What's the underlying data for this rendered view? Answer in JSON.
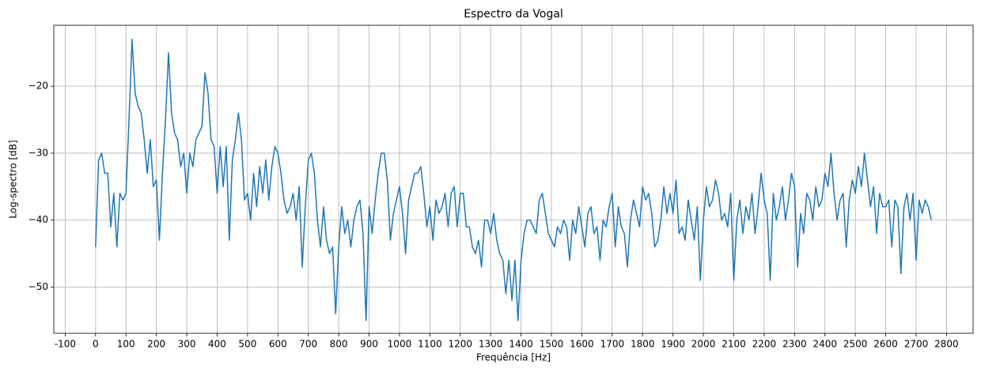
{
  "chart_data": {
    "type": "line",
    "title": "Espectro da Vogal",
    "x_label": "Frequência [Hz]",
    "y_label": "Log-spectro [dB]",
    "color": "#1f77b4",
    "grid": true,
    "xlim": [
      -137.5,
      2887.5
    ],
    "ylim": [
      -56.9,
      -10.9
    ],
    "xticks": [
      -100,
      0,
      100,
      200,
      300,
      400,
      500,
      600,
      700,
      800,
      900,
      1000,
      1100,
      1200,
      1300,
      1400,
      1500,
      1600,
      1700,
      1800,
      1900,
      2000,
      2100,
      2200,
      2300,
      2400,
      2500,
      2600,
      2700,
      2800
    ],
    "yticks": [
      {
        "value": -50,
        "label": "−50"
      },
      {
        "value": -40,
        "label": "−40"
      },
      {
        "value": -30,
        "label": "−30"
      },
      {
        "value": -20,
        "label": "−20"
      }
    ],
    "x": [
      0,
      10,
      20,
      30,
      40,
      50,
      60,
      70,
      80,
      90,
      100,
      110,
      120,
      130,
      140,
      150,
      160,
      170,
      180,
      190,
      200,
      210,
      220,
      230,
      240,
      250,
      260,
      270,
      280,
      290,
      300,
      310,
      320,
      330,
      340,
      350,
      360,
      370,
      380,
      390,
      400,
      410,
      420,
      430,
      440,
      450,
      460,
      470,
      480,
      490,
      500,
      510,
      520,
      530,
      540,
      550,
      560,
      570,
      580,
      590,
      600,
      610,
      620,
      630,
      640,
      650,
      660,
      670,
      680,
      690,
      700,
      710,
      720,
      730,
      740,
      750,
      760,
      770,
      780,
      790,
      800,
      810,
      820,
      830,
      840,
      850,
      860,
      870,
      880,
      890,
      900,
      910,
      920,
      930,
      940,
      950,
      960,
      970,
      980,
      990,
      1000,
      1010,
      1020,
      1030,
      1040,
      1050,
      1060,
      1070,
      1080,
      1090,
      1100,
      1110,
      1120,
      1130,
      1140,
      1150,
      1160,
      1170,
      1180,
      1190,
      1200,
      1210,
      1220,
      1230,
      1240,
      1250,
      1260,
      1270,
      1280,
      1290,
      1300,
      1310,
      1320,
      1330,
      1340,
      1350,
      1360,
      1370,
      1380,
      1390,
      1400,
      1410,
      1420,
      1430,
      1440,
      1450,
      1460,
      1470,
      1480,
      1490,
      1500,
      1510,
      1520,
      1530,
      1540,
      1550,
      1560,
      1570,
      1580,
      1590,
      1600,
      1610,
      1620,
      1630,
      1640,
      1650,
      1660,
      1670,
      1680,
      1690,
      1700,
      1710,
      1720,
      1730,
      1740,
      1750,
      1760,
      1770,
      1780,
      1790,
      1800,
      1810,
      1820,
      1830,
      1840,
      1850,
      1860,
      1870,
      1880,
      1890,
      1900,
      1910,
      1920,
      1930,
      1940,
      1950,
      1960,
      1970,
      1980,
      1990,
      2000,
      2010,
      2020,
      2030,
      2040,
      2050,
      2060,
      2070,
      2080,
      2090,
      2100,
      2110,
      2120,
      2130,
      2140,
      2150,
      2160,
      2170,
      2180,
      2190,
      2200,
      2210,
      2220,
      2230,
      2240,
      2250,
      2260,
      2270,
      2280,
      2290,
      2300,
      2310,
      2320,
      2330,
      2340,
      2350,
      2360,
      2370,
      2380,
      2390,
      2400,
      2410,
      2420,
      2430,
      2440,
      2450,
      2460,
      2470,
      2480,
      2490,
      2500,
      2510,
      2520,
      2530,
      2540,
      2550,
      2560,
      2570,
      2580,
      2590,
      2600,
      2610,
      2620,
      2630,
      2640,
      2650,
      2660,
      2670,
      2680,
      2690,
      2700,
      2710,
      2720,
      2730,
      2740,
      2750
    ],
    "values": [
      -44,
      -31,
      -30,
      -33,
      -33,
      -41,
      -36,
      -44,
      -36,
      -37,
      -36,
      -25,
      -13,
      -21,
      -23,
      -24,
      -28,
      -33,
      -28,
      -35,
      -34,
      -43,
      -33,
      -25,
      -15,
      -24,
      -27,
      -28,
      -32,
      -30,
      -36,
      -30,
      -32,
      -28,
      -27,
      -26,
      -18,
      -21,
      -28,
      -29,
      -36,
      -29,
      -35,
      -29,
      -43,
      -31,
      -28,
      -24,
      -28,
      -37,
      -36,
      -40,
      -33,
      -38,
      -32,
      -36,
      -31,
      -37,
      -32,
      -29,
      -30,
      -33,
      -37,
      -39,
      -38,
      -36,
      -40,
      -35,
      -47,
      -38,
      -31,
      -30,
      -33,
      -40,
      -44,
      -38,
      -43,
      -45,
      -44,
      -54,
      -44,
      -38,
      -42,
      -40,
      -44,
      -40,
      -38,
      -37,
      -42,
      -55,
      -38,
      -42,
      -37,
      -33,
      -30,
      -30,
      -34,
      -43,
      -39,
      -37,
      -35,
      -39,
      -45,
      -37,
      -35,
      -33,
      -33,
      -32,
      -36,
      -41,
      -38,
      -43,
      -37,
      -39,
      -38,
      -36,
      -41,
      -36,
      -35,
      -41,
      -36,
      -36,
      -41,
      -41,
      -44,
      -45,
      -43,
      -47,
      -40,
      -40,
      -42,
      -39,
      -43,
      -45,
      -46,
      -51,
      -46,
      -52,
      -46,
      -55,
      -46,
      -42,
      -40,
      -40,
      -41,
      -42,
      -37,
      -36,
      -39,
      -42,
      -43,
      -44,
      -41,
      -42,
      -40,
      -41,
      -46,
      -40,
      -42,
      -38,
      -41,
      -44,
      -39,
      -38,
      -42,
      -41,
      -46,
      -40,
      -41,
      -38,
      -36,
      -44,
      -38,
      -41,
      -42,
      -47,
      -40,
      -37,
      -39,
      -41,
      -35,
      -37,
      -36,
      -39,
      -44,
      -43,
      -40,
      -35,
      -39,
      -36,
      -39,
      -34,
      -42,
      -41,
      -43,
      -37,
      -40,
      -43,
      -38,
      -49,
      -40,
      -35,
      -38,
      -37,
      -34,
      -36,
      -40,
      -39,
      -41,
      -36,
      -49,
      -40,
      -37,
      -42,
      -38,
      -40,
      -36,
      -42,
      -38,
      -33,
      -37,
      -39,
      -49,
      -36,
      -40,
      -38,
      -35,
      -40,
      -37,
      -33,
      -35,
      -47,
      -39,
      -42,
      -36,
      -37,
      -40,
      -35,
      -38,
      -37,
      -33,
      -35,
      -30,
      -36,
      -40,
      -37,
      -36,
      -44,
      -37,
      -34,
      -36,
      -32,
      -35,
      -30,
      -34,
      -38,
      -35,
      -42,
      -36,
      -38,
      -38,
      -37,
      -44,
      -37,
      -38,
      -48,
      -38,
      -36,
      -40,
      -36,
      -46,
      -37,
      -39,
      -37,
      -38,
      -40
    ]
  }
}
